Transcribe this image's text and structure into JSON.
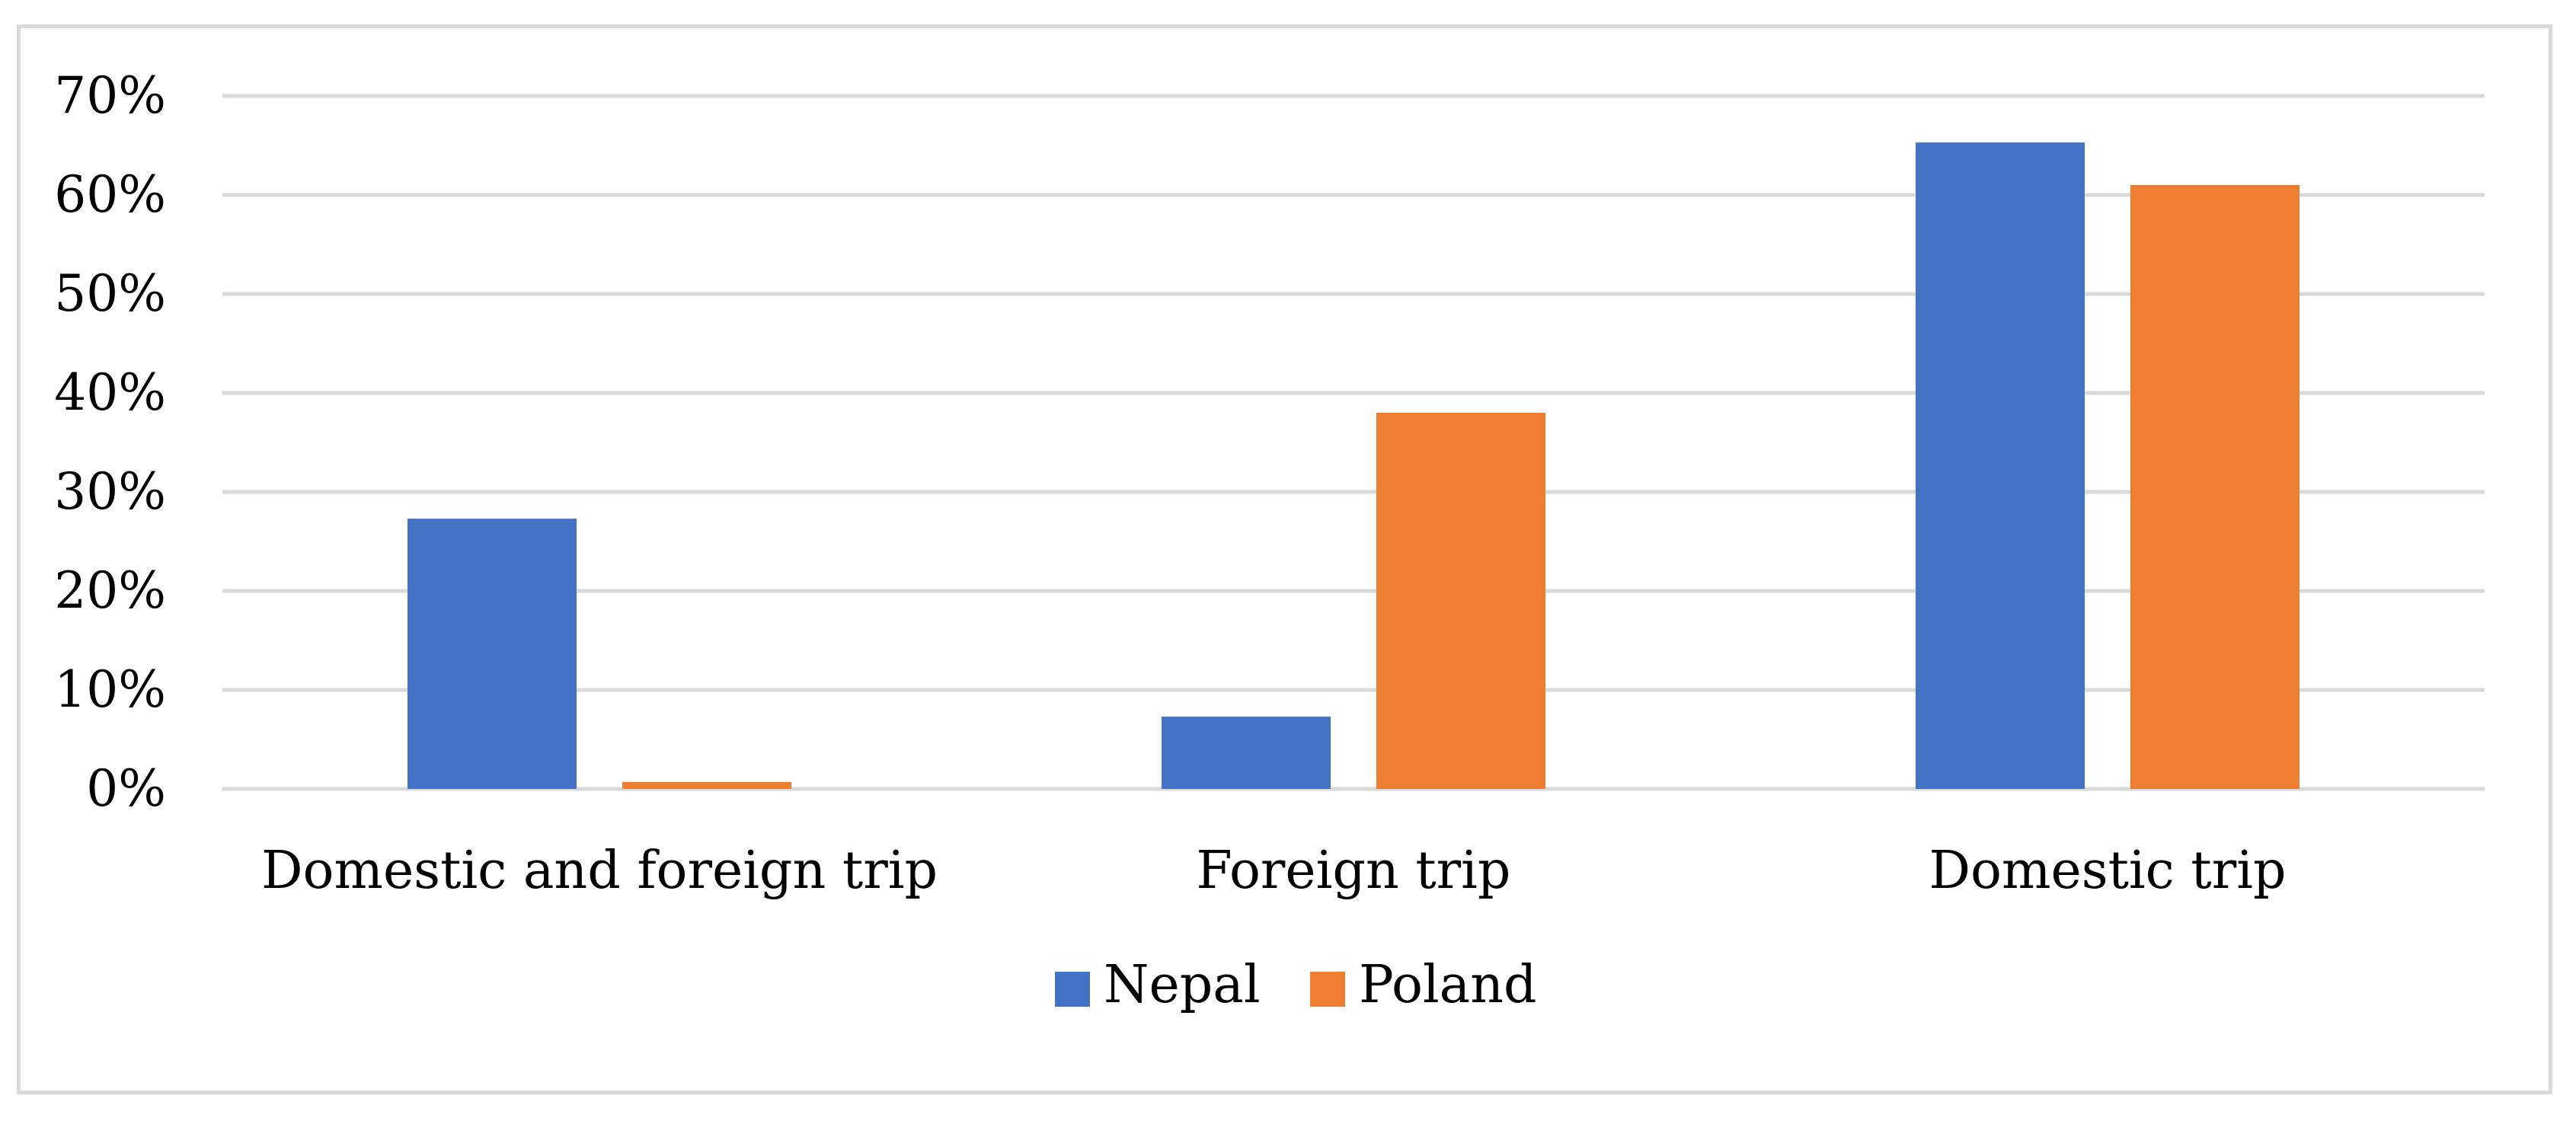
{
  "chart_data": {
    "type": "bar",
    "title": "",
    "xlabel": "",
    "ylabel": "",
    "categories": [
      "Domestic and foreign trip",
      "Foreign trip",
      "Domestic trip"
    ],
    "series": [
      {
        "name": "Nepal",
        "color": "#4472c4",
        "values": [
          27.3,
          7.3,
          65.3
        ]
      },
      {
        "name": "Poland",
        "color": "#ed7d31",
        "values": [
          0.7,
          38.0,
          61.0
        ]
      }
    ],
    "ylim": [
      0,
      70
    ],
    "yticks": [
      0,
      10,
      20,
      30,
      40,
      50,
      60,
      70
    ],
    "ytick_labels": [
      "0%",
      "10%",
      "20%",
      "30%",
      "40%",
      "50%",
      "60%",
      "70%"
    ],
    "grid": true,
    "legend_position": "bottom"
  }
}
